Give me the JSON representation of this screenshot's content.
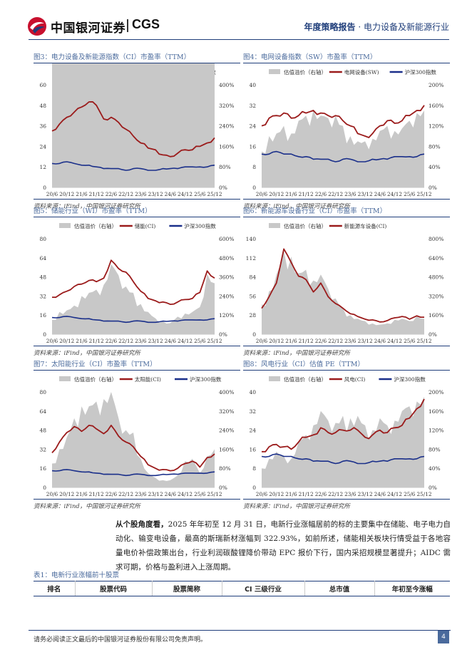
{
  "header": {
    "logo_cn": "中国银河证券",
    "logo_en": "CGS",
    "report_type": "年度策略报告",
    "dot": "·",
    "industry": "电力设备及新能源行业"
  },
  "colors": {
    "brand_red": "#c8102e",
    "brand_blue": "#1e3d7a",
    "series_red": "#9b1b1b",
    "series_navy": "#1a2f8a",
    "area_gray": "#c8c8c8"
  },
  "charts": [
    {
      "title": "图3：电力设备及新能源指数（CI）市盈率（TTM）",
      "source": "资料来源：iFind，中国银河证券研究所",
      "legend": [
        "估值溢价（右轴）",
        "电新(CI)",
        "沪深300指数"
      ],
      "left_ticks": [
        "60",
        "48",
        "36",
        "24",
        "12",
        "0"
      ],
      "right_ticks": [
        "400%",
        "320%",
        "240%",
        "160%",
        "80%",
        "0%"
      ],
      "x_ticks": [
        "20/6",
        "20/12",
        "21/6",
        "21/12",
        "22/6",
        "22/12",
        "23/6",
        "23/12",
        "24/6",
        "24/12",
        "25/6",
        "25/12"
      ]
    },
    {
      "title": "图4：电网设备指数（SW）市盈率（TTM）",
      "source": "资料来源：iFind，中国银河证券研究所",
      "legend": [
        "估值溢价（右轴）",
        "电网设备(SW)",
        "沪深300指数"
      ],
      "left_ticks": [
        "40",
        "32",
        "24",
        "16",
        "8",
        "0"
      ],
      "right_ticks": [
        "200%",
        "160%",
        "120%",
        "80%",
        "40%",
        "0%"
      ],
      "x_ticks": [
        "20/6",
        "20/12",
        "21/6",
        "21/12",
        "22/6",
        "22/12",
        "23/6",
        "23/12",
        "24/6",
        "24/12",
        "25/6",
        "25/12"
      ]
    },
    {
      "title": "图5：储能行业（WI）市盈率（TTM）",
      "source": "资料来源：iFind，中国银河证券研究所",
      "legend": [
        "估值溢价（右轴）",
        "储能(CI)",
        "沪深300指数"
      ],
      "left_ticks": [
        "80",
        "64",
        "48",
        "32",
        "16",
        "0"
      ],
      "right_ticks": [
        "600%",
        "480%",
        "360%",
        "240%",
        "120%",
        "0%"
      ],
      "x_ticks": [
        "20/6",
        "20/12",
        "21/6",
        "21/12",
        "22/6",
        "22/12",
        "23/6",
        "23/12",
        "24/6",
        "24/12",
        "25/6",
        "25/12"
      ]
    },
    {
      "title": "图6：新能源车设备行业（CI）市盈率（TTM）",
      "source": "资料来源：iFind，中国银河证券研究所",
      "legend": [
        "估值溢价（右轴）",
        "新能源车设备(CI)"
      ],
      "left_ticks": [
        "140",
        "112",
        "84",
        "56",
        "28",
        "0"
      ],
      "right_ticks": [
        "800%",
        "640%",
        "480%",
        "320%",
        "160%",
        "0%"
      ],
      "x_ticks": [
        "20/6",
        "20/12",
        "21/6",
        "21/12",
        "22/6",
        "22/12",
        "23/6",
        "23/12",
        "24/6",
        "24/12",
        "25/6",
        "25/12"
      ]
    },
    {
      "title": "图7：太阳能行业（CI）市盈率（TTM）",
      "source": "资料来源：iFind，中国银河证券研究所",
      "legend": [
        "估值溢价（右轴）",
        "太阳能(CI)",
        "沪深300指数"
      ],
      "left_ticks": [
        "80",
        "64",
        "48",
        "32",
        "16",
        "0"
      ],
      "right_ticks": [
        "400%",
        "320%",
        "240%",
        "160%",
        "80%",
        "0%"
      ],
      "x_ticks": [
        "20/6",
        "20/12",
        "21/6",
        "21/12",
        "22/6",
        "22/12",
        "23/6",
        "23/12",
        "24/6",
        "24/12",
        "25/6",
        "25/12"
      ]
    },
    {
      "title": "图8：风电行业（CI）估值 PE（TTM）",
      "source": "资料来源：iFind，中国银河证券研究所",
      "legend": [
        "估值溢价（右轴）",
        "风电(CI)",
        "沪深300指数"
      ],
      "left_ticks": [
        "40",
        "32",
        "24",
        "16",
        "8",
        "0"
      ],
      "right_ticks": [
        "200%",
        "160%",
        "120%",
        "80%",
        "40%",
        "0%"
      ],
      "x_ticks": [
        "20/6",
        "20/12",
        "21/6",
        "21/12",
        "22/6",
        "22/12",
        "23/6",
        "23/12",
        "24/6",
        "24/12",
        "25/6",
        "25/12"
      ]
    }
  ],
  "chart_data": [
    {
      "type": "line",
      "x": [
        "20/6",
        "20/9",
        "20/12",
        "21/3",
        "21/6",
        "21/9",
        "21/12",
        "22/3",
        "22/6",
        "22/9",
        "22/12",
        "23/3",
        "23/6",
        "23/9",
        "23/12",
        "24/3",
        "24/6",
        "24/9",
        "24/12",
        "25/3",
        "25/6",
        "25/9",
        "25/12"
      ],
      "series": [
        {
          "name": "电新(CI)",
          "axis": "left",
          "values": [
            33,
            37,
            41,
            44,
            47,
            50,
            48,
            40,
            41,
            38,
            34,
            30,
            26,
            23,
            22,
            19,
            18,
            20,
            22,
            22,
            24,
            26,
            29
          ]
        },
        {
          "name": "沪深300指数",
          "axis": "left",
          "values": [
            14,
            14,
            15,
            14,
            13,
            13,
            12,
            11,
            11,
            11,
            10,
            11,
            11,
            10,
            10,
            11,
            11,
            11,
            12,
            12,
            12,
            12,
            13
          ]
        },
        {
          "name": "估值溢价（右轴）",
          "axis": "right",
          "values": [
            140,
            170,
            190,
            210,
            250,
            300,
            290,
            240,
            270,
            230,
            170,
            140,
            110,
            80,
            60,
            40,
            30,
            70,
            110,
            100,
            110,
            130,
            140
          ]
        }
      ],
      "ylim": [
        0,
        60
      ],
      "y2lim": [
        0,
        4
      ]
    },
    {
      "type": "line",
      "x": [
        "20/6",
        "20/9",
        "20/12",
        "21/3",
        "21/6",
        "21/9",
        "21/12",
        "22/3",
        "22/6",
        "22/9",
        "22/12",
        "23/3",
        "23/6",
        "23/9",
        "23/12",
        "24/3",
        "24/6",
        "24/9",
        "24/12",
        "25/3",
        "25/6",
        "25/9",
        "25/12"
      ],
      "series": [
        {
          "name": "电网设备(SW)",
          "axis": "left",
          "values": [
            24,
            27,
            28,
            29,
            27,
            28,
            29,
            30,
            29,
            28,
            28,
            26,
            24,
            21,
            20,
            21,
            24,
            26,
            25,
            26,
            28,
            30,
            32
          ]
        },
        {
          "name": "沪深300指数",
          "axis": "left",
          "values": [
            13,
            13,
            14,
            13,
            13,
            12,
            12,
            11,
            11,
            11,
            10,
            11,
            11,
            10,
            10,
            11,
            11,
            11,
            12,
            12,
            12,
            12,
            13
          ]
        },
        {
          "name": "估值溢价（右轴）",
          "axis": "right",
          "values": [
            0.7,
            1.0,
            1.05,
            1.2,
            1.05,
            1.3,
            1.4,
            1.5,
            1.4,
            1.35,
            1.4,
            1.2,
            1.0,
            0.9,
            0.9,
            0.95,
            1.1,
            1.2,
            1.1,
            1.15,
            1.3,
            1.45,
            1.5
          ]
        }
      ],
      "ylim": [
        0,
        40
      ],
      "y2lim": [
        0,
        2
      ]
    },
    {
      "type": "line",
      "x": [
        "20/6",
        "20/9",
        "20/12",
        "21/3",
        "21/6",
        "21/9",
        "21/12",
        "22/3",
        "22/6",
        "22/9",
        "22/12",
        "23/3",
        "23/6",
        "23/9",
        "23/12",
        "24/3",
        "24/6",
        "24/9",
        "24/12",
        "25/3",
        "25/6",
        "25/9",
        "25/12"
      ],
      "series": [
        {
          "name": "储能(CI)",
          "axis": "left",
          "values": [
            31,
            33,
            36,
            40,
            42,
            45,
            44,
            47,
            62,
            55,
            52,
            44,
            36,
            30,
            28,
            27,
            25,
            27,
            29,
            30,
            35,
            53,
            47
          ]
        },
        {
          "name": "沪深300指数",
          "axis": "left",
          "values": [
            14,
            14,
            15,
            14,
            13,
            13,
            12,
            11,
            11,
            11,
            10,
            11,
            11,
            10,
            10,
            11,
            11,
            11,
            12,
            12,
            12,
            12,
            13
          ]
        },
        {
          "name": "估值溢价（右轴）",
          "axis": "right",
          "values": [
            0.9,
            1.4,
            1.5,
            1.8,
            2.4,
            2.6,
            2.8,
            3.1,
            4.4,
            3.7,
            3.0,
            2.6,
            1.9,
            1.4,
            1.0,
            0.8,
            0.7,
            1.1,
            1.3,
            1.4,
            1.7,
            3.8,
            3.2
          ]
        }
      ],
      "ylim": [
        0,
        80
      ],
      "y2lim": [
        0,
        6
      ]
    },
    {
      "type": "line",
      "x": [
        "20/6",
        "20/9",
        "20/12",
        "21/3",
        "21/6",
        "21/9",
        "21/12",
        "22/3",
        "22/6",
        "22/9",
        "22/12",
        "23/3",
        "23/6",
        "23/9",
        "23/12",
        "24/3",
        "24/6",
        "24/9",
        "24/12",
        "25/3",
        "25/6",
        "25/9",
        "25/12"
      ],
      "series": [
        {
          "name": "新能源车设备(CI)",
          "axis": "left",
          "values": [
            38,
            55,
            75,
            125,
            105,
            85,
            80,
            62,
            75,
            55,
            45,
            38,
            30,
            26,
            22,
            21,
            18,
            20,
            24,
            26,
            22,
            27,
            25
          ]
        },
        {
          "name": "估值溢价（右轴）",
          "axis": "right",
          "values": [
            2.5,
            3.6,
            5.0,
            7.0,
            6.5,
            5.1,
            5.4,
            4.5,
            5.0,
            3.8,
            3.0,
            2.2,
            1.6,
            1.3,
            1.1,
            0.9,
            0.8,
            0.9,
            1.2,
            1.3,
            1.1,
            1.5,
            1.3
          ]
        }
      ],
      "ylim": [
        0,
        140
      ],
      "y2lim": [
        0,
        8
      ]
    },
    {
      "type": "line",
      "x": [
        "20/6",
        "20/9",
        "20/12",
        "21/3",
        "21/6",
        "21/9",
        "21/12",
        "22/3",
        "22/6",
        "22/9",
        "22/12",
        "23/3",
        "23/6",
        "23/9",
        "23/12",
        "24/3",
        "24/6",
        "24/9",
        "24/12",
        "25/3",
        "25/6",
        "25/9",
        "25/12"
      ],
      "series": [
        {
          "name": "太阳能(CI)",
          "axis": "left",
          "values": [
            29,
            38,
            46,
            51,
            47,
            52,
            49,
            45,
            52,
            43,
            38,
            34,
            26,
            19,
            16,
            15,
            14,
            16,
            20,
            22,
            17,
            25,
            28
          ]
        },
        {
          "name": "沪深300指数",
          "axis": "left",
          "values": [
            14,
            14,
            15,
            14,
            13,
            13,
            12,
            11,
            11,
            11,
            10,
            11,
            11,
            10,
            10,
            11,
            11,
            11,
            12,
            12,
            12,
            12,
            13
          ]
        },
        {
          "name": "估值溢价（右轴）",
          "axis": "right",
          "values": [
            1.0,
            1.6,
            2.1,
            2.9,
            3.4,
            3.4,
            3.6,
            3.7,
            4.0,
            2.9,
            2.4,
            2.3,
            1.2,
            0.6,
            0.4,
            0.3,
            0.3,
            0.5,
            1.1,
            1.2,
            0.6,
            1.3,
            1.6
          ]
        }
      ],
      "ylim": [
        0,
        80
      ],
      "y2lim": [
        0,
        4
      ]
    },
    {
      "type": "line",
      "x": [
        "20/6",
        "20/9",
        "20/12",
        "21/3",
        "21/6",
        "21/9",
        "21/12",
        "22/3",
        "22/6",
        "22/9",
        "22/12",
        "23/3",
        "23/6",
        "23/9",
        "23/12",
        "24/3",
        "24/6",
        "24/9",
        "24/12",
        "25/3",
        "25/6",
        "25/9",
        "25/12"
      ],
      "series": [
        {
          "name": "风电(CI)",
          "axis": "left",
          "values": [
            15,
            17,
            18,
            17,
            16,
            19,
            21,
            22,
            25,
            23,
            23,
            24,
            24,
            24,
            21,
            22,
            24,
            23,
            25,
            26,
            29,
            33,
            37
          ]
        },
        {
          "name": "沪深300指数",
          "axis": "left",
          "values": [
            13,
            13,
            14,
            13,
            13,
            12,
            12,
            11,
            11,
            11,
            10,
            11,
            11,
            10,
            10,
            11,
            11,
            11,
            12,
            12,
            12,
            12,
            13
          ]
        },
        {
          "name": "估值溢价（右轴）",
          "axis": "right",
          "values": [
            0.4,
            0.6,
            0.75,
            0.65,
            0.6,
            0.95,
            1.1,
            1.3,
            1.6,
            1.4,
            1.35,
            1.5,
            1.45,
            1.5,
            1.3,
            1.2,
            1.45,
            1.3,
            1.4,
            1.6,
            1.7,
            1.8,
            1.9
          ]
        }
      ],
      "ylim": [
        0,
        40
      ],
      "y2lim": [
        0,
        2
      ]
    }
  ],
  "paragraph": {
    "lead": "从个股角度看，",
    "body": "2025 年年初至 12 月 31 日，电新行业涨幅居前的标的主要集中在储能、电子电力自动化、输变电设备，最高的斯瑞新材涨幅到 322.93%，如前所述，储能相关板块行情受益于各地容量电价补偿政策出台，行业利润碳酸锂降价带动 EPC 报价下行，国内采招规模显著提升；AIDC 需求可期，价格与盈利进入上涨周期。"
  },
  "table": {
    "title": "表1：电新行业涨幅前十股票",
    "headers": [
      "排名",
      "股票代码",
      "股票简称",
      "CI 三级行业",
      "总市值",
      "年初至今涨幅"
    ]
  },
  "footer": {
    "disclaimer": "请务必阅读正文最后的中国银河证券股份有限公司免责声明。",
    "page": "4"
  }
}
